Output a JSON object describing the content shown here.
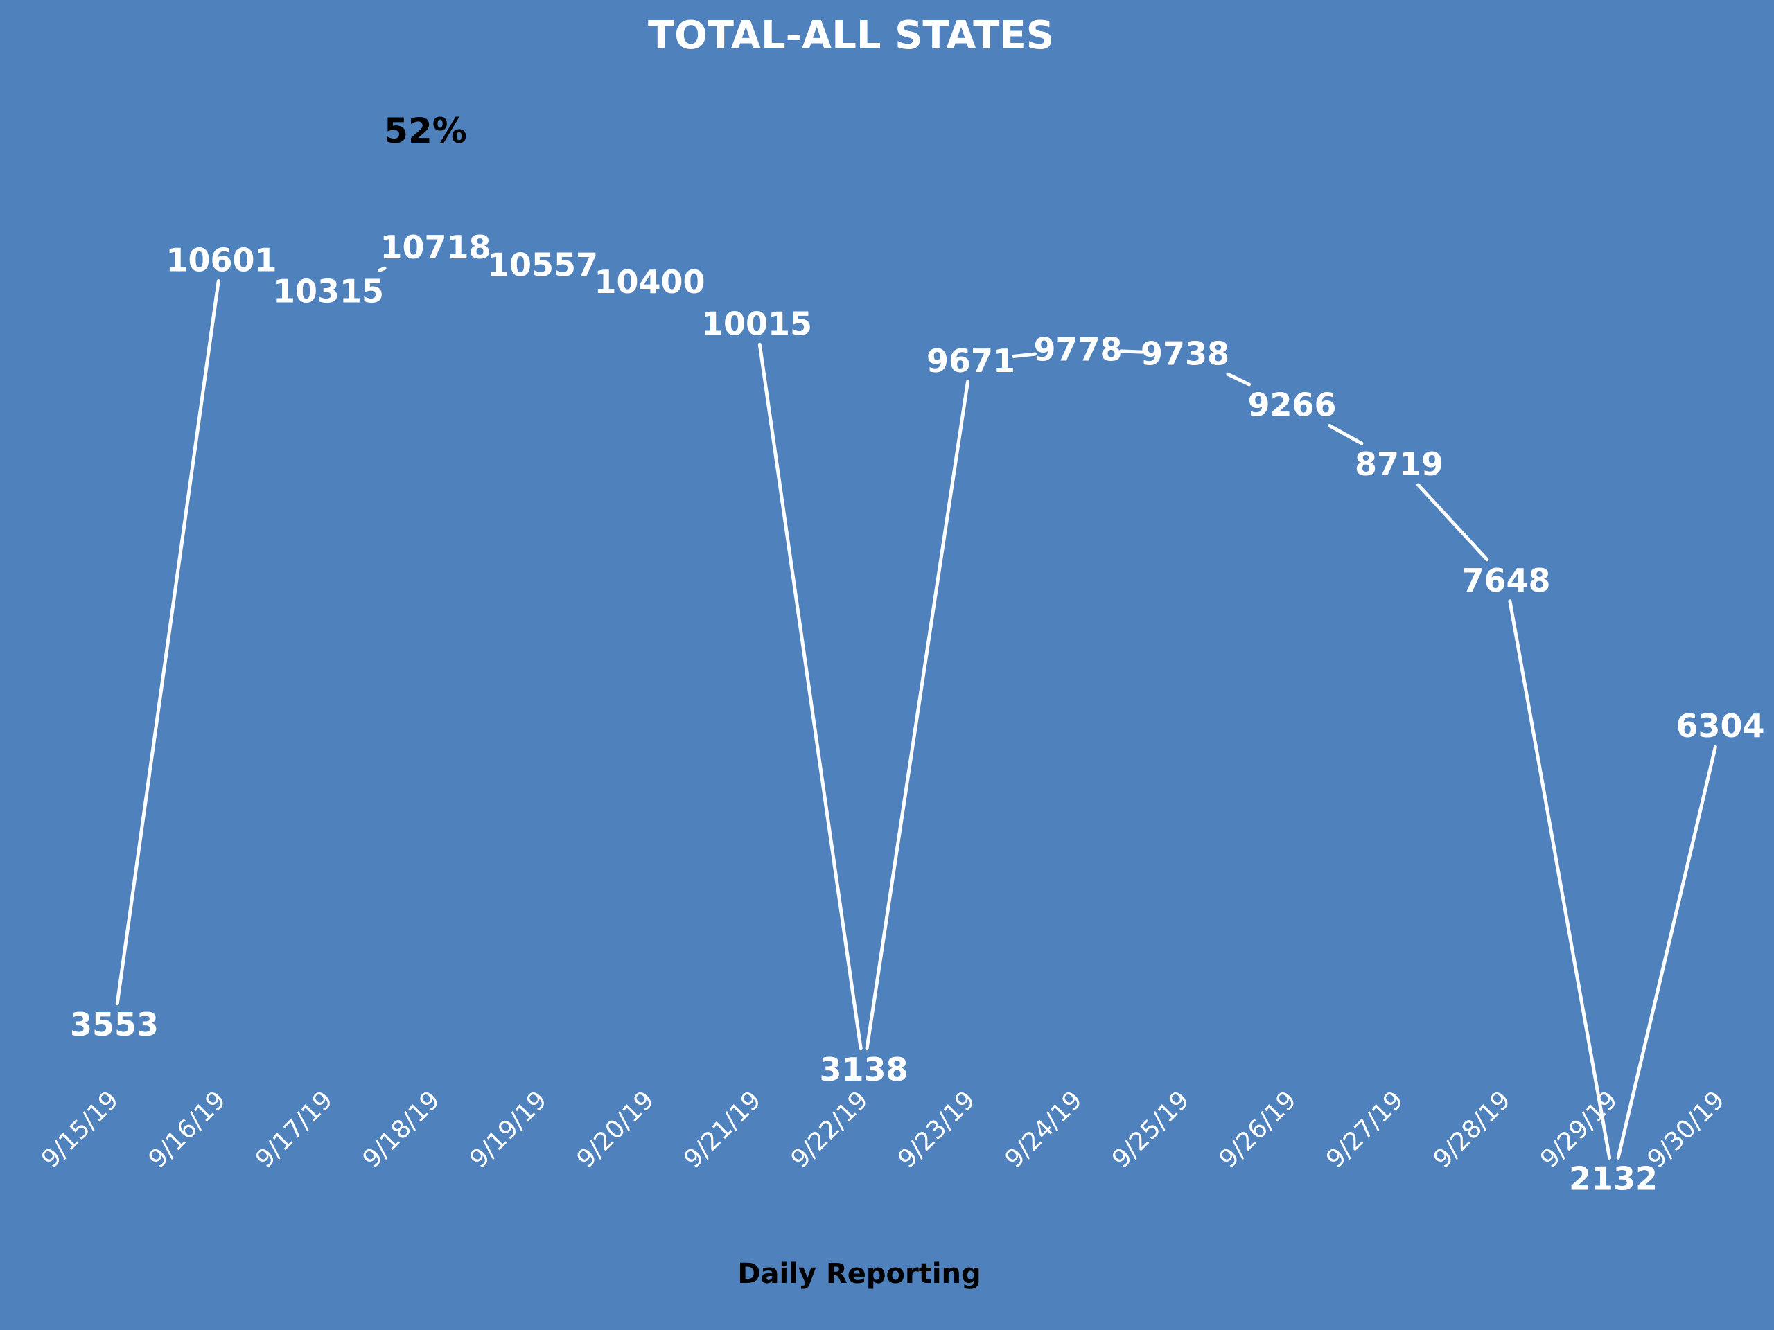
{
  "chart_data": {
    "type": "line",
    "title": "TOTAL-ALL STATES",
    "annotation": "52%",
    "xlabel": "Daily Reporting",
    "ylabel": "",
    "categories": [
      "9/15/19",
      "9/16/19",
      "9/17/19",
      "9/18/19",
      "9/19/19",
      "9/20/19",
      "9/21/19",
      "9/22/19",
      "9/23/19",
      "9/24/19",
      "9/25/19",
      "9/26/19",
      "9/27/19",
      "9/28/19",
      "9/29/19",
      "9/30/19"
    ],
    "values": [
      3553,
      10601,
      10315,
      10718,
      10557,
      10400,
      10015,
      3138,
      9671,
      9778,
      9738,
      9266,
      8719,
      7648,
      2132,
      6304
    ],
    "data_labels": [
      "3553",
      "10601",
      "10315",
      "10718",
      "10557",
      "10400",
      "10015",
      "3138",
      "9671",
      "9778",
      "9738",
      "9266",
      "8719",
      "7648",
      "2132",
      "6304"
    ],
    "ylim": [
      0,
      13000
    ],
    "grid": false,
    "legend": "none",
    "colors": {
      "background": "#4f81bd",
      "line": "#ffffff",
      "text": "#ffffff",
      "annotation": "#000000"
    }
  }
}
